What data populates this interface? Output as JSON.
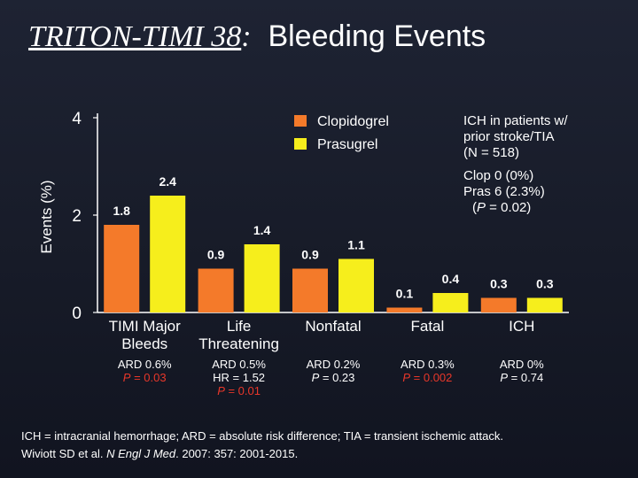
{
  "slide": {
    "title_trial": "TRITON-TIMI 38",
    "title_colon": ":",
    "title_rest": "  Bleeding Events"
  },
  "chart_data": {
    "type": "bar",
    "ylabel": "Events (%)",
    "ylim": [
      0,
      4
    ],
    "yticks": [
      "0",
      "2",
      "4"
    ],
    "categories": [
      [
        "TIMI Major",
        "Bleeds"
      ],
      [
        "Life",
        "Threatening"
      ],
      [
        "Nonfatal"
      ],
      [
        "Fatal"
      ],
      [
        "ICH"
      ]
    ],
    "series": [
      {
        "name": "Clopidogrel",
        "color": "#f47a2a",
        "values": [
          1.8,
          0.9,
          0.9,
          0.1,
          0.3
        ],
        "labels": [
          "1.8",
          "0.9",
          "0.9",
          "0.1",
          "0.3"
        ]
      },
      {
        "name": "Prasugrel",
        "color": "#f6ee1c",
        "values": [
          2.4,
          1.4,
          1.1,
          0.4,
          0.3
        ],
        "labels": [
          "2.4",
          "1.4",
          "1.1",
          "0.4",
          "0.3"
        ]
      }
    ],
    "legend_position": "top",
    "grid": false,
    "annotations": [
      {
        "ard": "ARD 0.6%",
        "hr": "",
        "p_label": "P",
        "p_value": " = 0.03",
        "p_color": "red"
      },
      {
        "ard": "ARD 0.5%",
        "hr": "HR = 1.52",
        "p_label": "P",
        "p_value": " = 0.01",
        "p_color": "red"
      },
      {
        "ard": "ARD 0.2%",
        "hr": "",
        "p_label": "P",
        "p_value": " = 0.23",
        "p_color": "white"
      },
      {
        "ard": "ARD 0.3%",
        "hr": "",
        "p_label": "P",
        "p_value": " = 0.002",
        "p_color": "red"
      },
      {
        "ard": "ARD 0%",
        "hr": "",
        "p_label": "P",
        "p_value": " = 0.74",
        "p_color": "white"
      }
    ]
  },
  "ich_note": {
    "line1": "ICH in patients w/",
    "line2": "prior stroke/TIA",
    "line3": "(N = 518)",
    "line4": "Clop 0 (0%)",
    "line5": "Pras 6 (2.3%)",
    "line6_pre": "(",
    "line6_p": "P",
    "line6_post": " = 0.02)"
  },
  "footer": {
    "line1": "ICH = intracranial hemorrhage; ARD = absolute risk difference; TIA = transient ischemic attack.",
    "line2_pre": "Wiviott SD et al. ",
    "line2_journal": "N Engl J Med",
    "line2_post": ". 2007: 357: 2001-2015."
  }
}
